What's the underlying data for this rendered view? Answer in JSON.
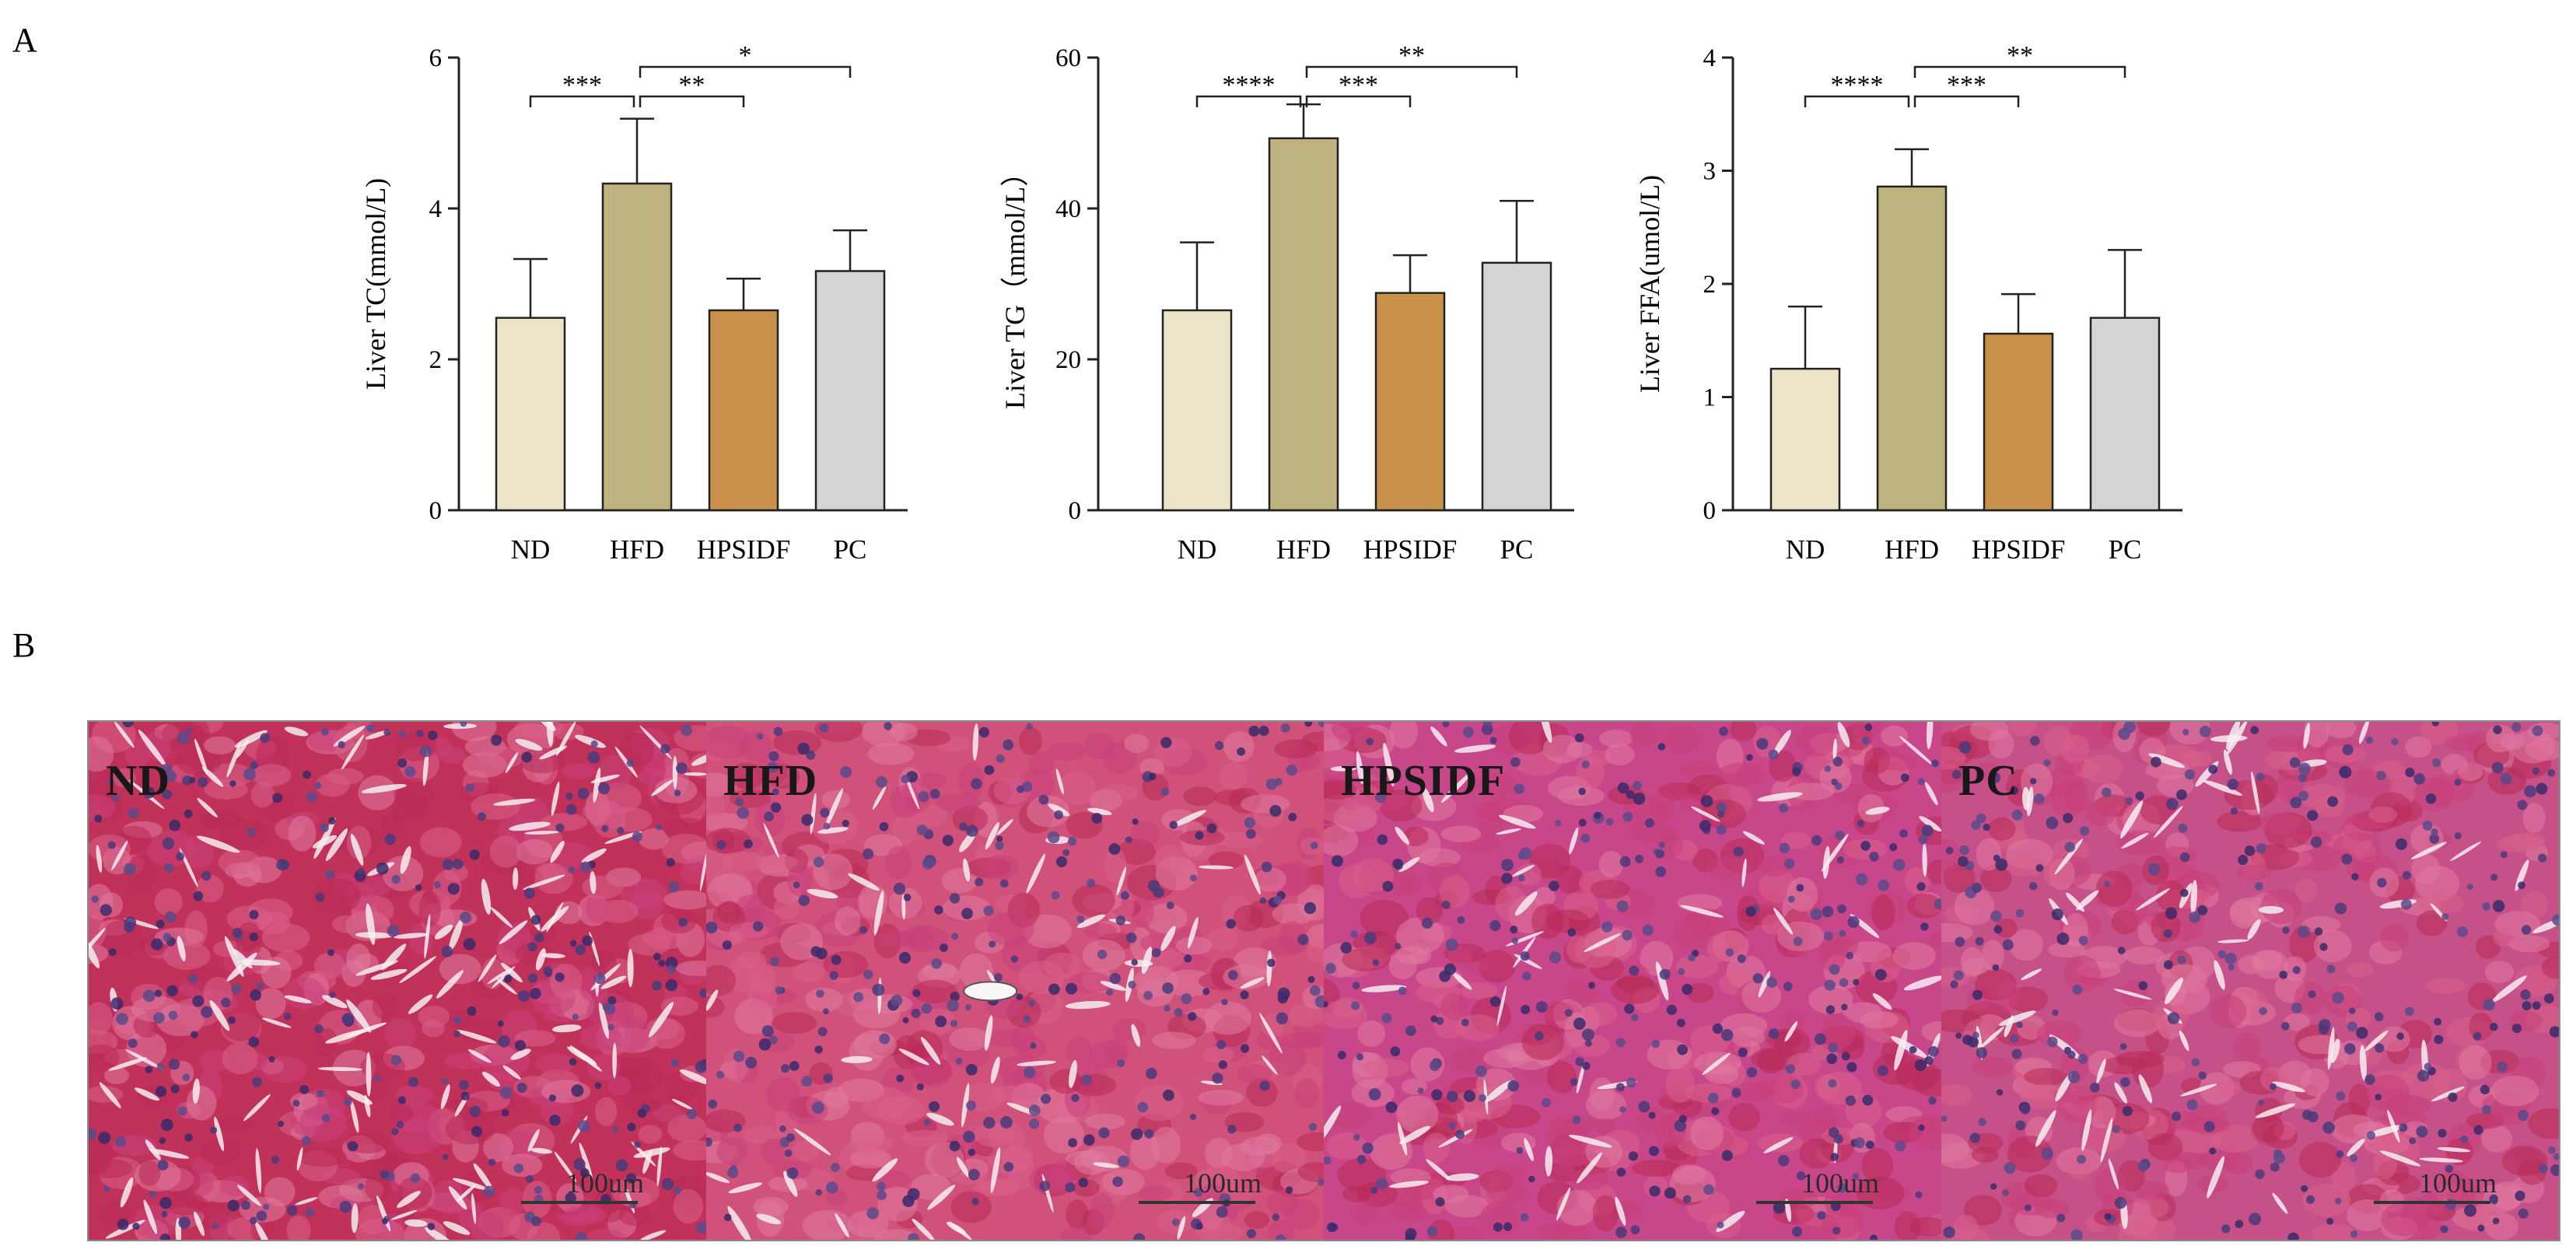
{
  "panels": {
    "a_label": "A",
    "b_label": "B"
  },
  "chart_data": [
    {
      "type": "bar",
      "categories": [
        "ND",
        "HFD",
        "HPSIDF",
        "PC"
      ],
      "values": [
        2.55,
        4.33,
        2.65,
        3.17
      ],
      "errors": [
        0.78,
        0.86,
        0.42,
        0.54
      ],
      "bar_colors": [
        "#ebe4c7",
        "#beb27e",
        "#c9914a",
        "#d4d4d4"
      ],
      "xlabel": "",
      "ylabel": "Liver TC(mmol/L)",
      "ylim": [
        0,
        6
      ],
      "yticks": [
        0,
        2,
        4,
        6
      ],
      "significance": [
        {
          "from": "ND",
          "to": "HFD",
          "label": "***"
        },
        {
          "from": "HFD",
          "to": "HPSIDF",
          "label": "**"
        },
        {
          "from": "HFD",
          "to": "PC",
          "label": "*"
        }
      ]
    },
    {
      "type": "bar",
      "categories": [
        "ND",
        "HFD",
        "HPSIDF",
        "PC"
      ],
      "values": [
        26.5,
        49.3,
        28.8,
        32.8
      ],
      "errors": [
        9.0,
        4.5,
        5.0,
        8.2
      ],
      "bar_colors": [
        "#ebe4c7",
        "#beb27e",
        "#c9914a",
        "#d4d4d4"
      ],
      "xlabel": "",
      "ylabel": "Liver TG（mmol/L）",
      "ylim": [
        0,
        60
      ],
      "yticks": [
        0,
        20,
        40,
        60
      ],
      "significance": [
        {
          "from": "ND",
          "to": "HFD",
          "label": "****"
        },
        {
          "from": "HFD",
          "to": "HPSIDF",
          "label": "***"
        },
        {
          "from": "HFD",
          "to": "PC",
          "label": "**"
        }
      ]
    },
    {
      "type": "bar",
      "categories": [
        "ND",
        "HFD",
        "HPSIDF",
        "PC"
      ],
      "values": [
        1.25,
        2.86,
        1.56,
        1.7
      ],
      "errors": [
        0.55,
        0.33,
        0.35,
        0.6
      ],
      "bar_colors": [
        "#ebe4c7",
        "#beb27e",
        "#c9914a",
        "#d4d4d4"
      ],
      "xlabel": "",
      "ylabel": "Liver FFA(umol/L)",
      "ylim": [
        0,
        4
      ],
      "yticks": [
        0,
        1,
        2,
        3,
        4
      ],
      "significance": [
        {
          "from": "ND",
          "to": "HFD",
          "label": "****"
        },
        {
          "from": "HFD",
          "to": "HPSIDF",
          "label": "***"
        },
        {
          "from": "HFD",
          "to": "PC",
          "label": "**"
        }
      ]
    }
  ],
  "histology": {
    "panels": [
      {
        "label": "ND",
        "scale": "100um"
      },
      {
        "label": "HFD",
        "scale": "100um"
      },
      {
        "label": "HPSIDF",
        "scale": "100um"
      },
      {
        "label": "PC",
        "scale": "100um"
      }
    ]
  }
}
